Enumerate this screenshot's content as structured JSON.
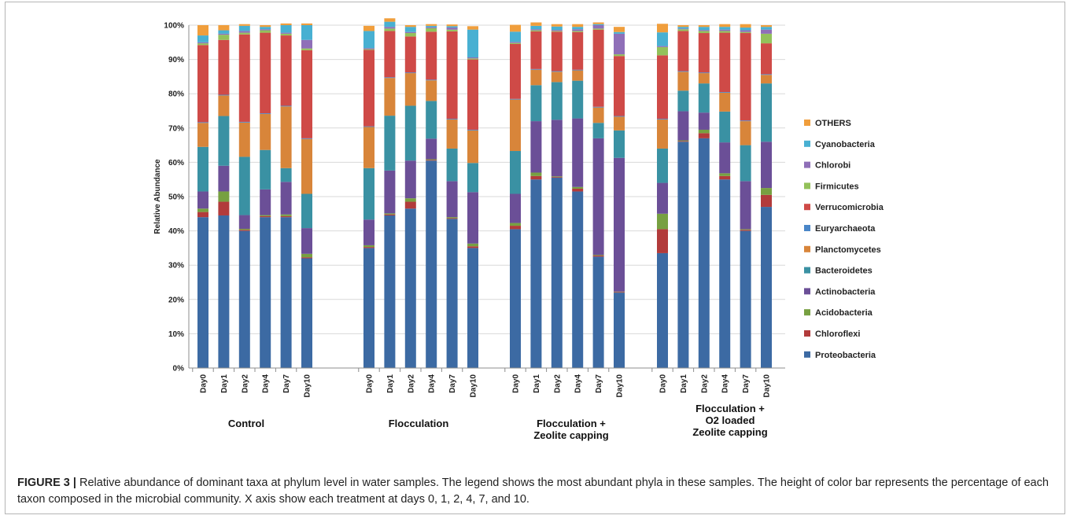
{
  "chart_data": {
    "type": "bar",
    "stacked": true,
    "ylabel": "Relative Abundance",
    "ylim": [
      0,
      100
    ],
    "yticks": [
      "0%",
      "10%",
      "20%",
      "30%",
      "40%",
      "50%",
      "60%",
      "70%",
      "80%",
      "90%",
      "100%"
    ],
    "grid": true,
    "legend_position": "right",
    "groups": [
      {
        "label": "Control",
        "categories": [
          "Day0",
          "Day1",
          "Day2",
          "Day4",
          "Day7",
          "Day10"
        ]
      },
      {
        "label": "Flocculation",
        "categories": [
          "Day0",
          "Day1",
          "Day2",
          "Day4",
          "Day7",
          "Day10"
        ]
      },
      {
        "label": "Flocculation + Zeolite capping",
        "categories": [
          "Day0",
          "Day1",
          "Day2",
          "Day4",
          "Day7",
          "Day10"
        ]
      },
      {
        "label": "Flocculation + O2 loaded Zeolite capping",
        "categories": [
          "Day0",
          "Day1",
          "Day2",
          "Day4",
          "Day7",
          "Day10"
        ]
      }
    ],
    "series": [
      {
        "name": "Proteobacteria",
        "color": "#3c6aa3",
        "values": [
          44,
          44.5,
          40,
          44,
          44,
          32,
          35,
          44.5,
          46.5,
          60.5,
          43.5,
          35,
          40.5,
          55,
          55.5,
          51.5,
          32.5,
          22,
          33.5,
          66,
          67,
          55,
          40,
          47
        ]
      },
      {
        "name": "Chloroflexi",
        "color": "#b23b3b",
        "values": [
          1.5,
          4,
          0.3,
          0.3,
          0.3,
          0.3,
          0.3,
          0.3,
          2,
          0.2,
          0.2,
          0.5,
          1,
          1,
          0.2,
          0.8,
          0.3,
          0.2,
          7,
          0.2,
          1.5,
          1,
          0.3,
          3.5
        ]
      },
      {
        "name": "Acidobacteria",
        "color": "#77a041",
        "values": [
          1,
          3,
          0.3,
          0.3,
          0.5,
          1,
          0.5,
          0.3,
          1,
          0.2,
          0.3,
          0.8,
          0.8,
          1,
          0.2,
          0.5,
          0.2,
          0.1,
          4.5,
          0.2,
          1,
          0.8,
          0.2,
          2
        ]
      },
      {
        "name": "Actinobacteria",
        "color": "#6b4f97",
        "values": [
          5,
          7.5,
          4,
          7.5,
          9.5,
          7.5,
          7.5,
          12.5,
          11,
          6,
          10.5,
          15,
          8.5,
          15,
          16.5,
          20,
          34,
          39,
          9,
          8.5,
          5,
          9,
          14,
          13.5
        ]
      },
      {
        "name": "Bacteroidetes",
        "color": "#3a91a3",
        "values": [
          13,
          14.5,
          17,
          11.5,
          4,
          10,
          15,
          16,
          16,
          11,
          9.5,
          8.5,
          12.5,
          10.5,
          11,
          11,
          4.5,
          8,
          10,
          6,
          8.5,
          9,
          10.5,
          17
        ]
      },
      {
        "name": "Planctomycetes",
        "color": "#d8853a",
        "values": [
          7,
          6,
          10,
          10.5,
          18,
          16,
          12,
          11,
          9.5,
          6,
          8.5,
          9.5,
          15,
          4.5,
          3,
          3,
          4.5,
          4,
          8.5,
          5.5,
          3,
          5.5,
          7,
          2.5
        ]
      },
      {
        "name": "Euryarchaeota",
        "color": "#4a86c8",
        "values": [
          0.2,
          0.2,
          0.2,
          0.2,
          0.2,
          0.2,
          0.2,
          0.2,
          0.2,
          0.2,
          0.2,
          0.2,
          0.2,
          0.2,
          0.2,
          0.2,
          0.2,
          0.2,
          0.2,
          0.2,
          0.2,
          0.2,
          0.2,
          0.2
        ]
      },
      {
        "name": "Verrucomicrobia",
        "color": "#cf4a47",
        "values": [
          22.5,
          16,
          25.5,
          23.5,
          20.5,
          25.7,
          22.3,
          13.5,
          10.5,
          14,
          25.5,
          20.5,
          16,
          11,
          11.5,
          11,
          22.5,
          17.5,
          18.5,
          11.7,
          11.5,
          17.3,
          25.5,
          9
        ]
      },
      {
        "name": "Firmicutes",
        "color": "#93c15a",
        "values": [
          0.5,
          1.5,
          0.5,
          0.7,
          0.5,
          0.5,
          0.2,
          0.7,
          1,
          1,
          0.5,
          0.3,
          0.3,
          0.3,
          0.2,
          0.3,
          0.3,
          0.5,
          2.4,
          0.5,
          0.6,
          0.5,
          0.3,
          2.8
        ]
      },
      {
        "name": "Chlorobi",
        "color": "#8f6fb8",
        "values": [
          0.3,
          0.3,
          0.5,
          0.3,
          0.3,
          2.5,
          0.3,
          0.5,
          0.3,
          0.3,
          0.6,
          0.3,
          0.3,
          0.3,
          0.3,
          0.5,
          1,
          6,
          0.3,
          0.2,
          0.3,
          0.4,
          0.5,
          1.2
        ]
      },
      {
        "name": "Cyanobacteria",
        "color": "#48b0d2",
        "values": [
          2,
          1,
          1.5,
          0.7,
          2.2,
          4.3,
          5,
          1.5,
          1.5,
          0.4,
          0.4,
          8.1,
          3,
          1,
          1,
          0.7,
          0.3,
          0.5,
          4,
          0.5,
          0.9,
          0.8,
          0.8,
          0.8
        ]
      },
      {
        "name": "OTHERS",
        "color": "#f09e3c",
        "values": [
          3,
          1.5,
          0.5,
          0.5,
          0.5,
          0.5,
          1.5,
          1,
          0.5,
          0.5,
          0.5,
          1,
          2,
          1,
          0.7,
          0.8,
          0.5,
          1.5,
          2.5,
          0.5,
          0.5,
          0.8,
          1,
          0.5
        ]
      }
    ],
    "legend_order": [
      "OTHERS",
      "Cyanobacteria",
      "Chlorobi",
      "Firmicutes",
      "Verrucomicrobia",
      "Euryarchaeota",
      "Planctomycetes",
      "Bacteroidetes",
      "Actinobacteria",
      "Acidobacteria",
      "Chloroflexi",
      "Proteobacteria"
    ]
  },
  "caption": {
    "figure_label": "FIGURE 3 |",
    "text": "Relative abundance of dominant taxa at phylum level in water samples. The legend shows the most abundant phyla in these samples. The height of color bar represents the percentage of each taxon composed in the microbial community. X axis show each treatment at days 0, 1, 2, 4, 7, and 10."
  }
}
